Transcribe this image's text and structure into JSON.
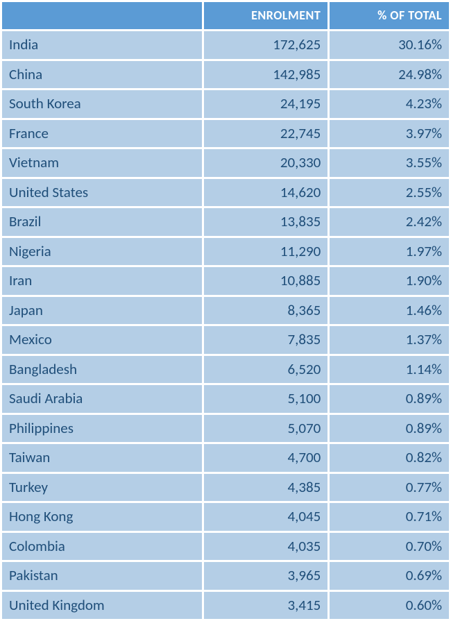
{
  "table": {
    "type": "table",
    "header_bg": "#5b9bd5",
    "header_text_color": "#ffffff",
    "row_bg": "#b4cee6",
    "row_text_color": "#1f4e79",
    "columns": [
      {
        "key": "country",
        "label": "",
        "align": "left"
      },
      {
        "key": "enrolment",
        "label": "ENROLMENT",
        "align": "right"
      },
      {
        "key": "pct",
        "label": "% OF TOTAL",
        "align": "right"
      }
    ],
    "rows": [
      {
        "country": "India",
        "enrolment": "172,625",
        "pct": "30.16%"
      },
      {
        "country": "China",
        "enrolment": "142,985",
        "pct": "24.98%"
      },
      {
        "country": "South Korea",
        "enrolment": "24,195",
        "pct": "4.23%"
      },
      {
        "country": "France",
        "enrolment": "22,745",
        "pct": "3.97%"
      },
      {
        "country": "Vietnam",
        "enrolment": "20,330",
        "pct": "3.55%"
      },
      {
        "country": "United States",
        "enrolment": "14,620",
        "pct": "2.55%"
      },
      {
        "country": "Brazil",
        "enrolment": "13,835",
        "pct": "2.42%"
      },
      {
        "country": "Nigeria",
        "enrolment": "11,290",
        "pct": "1.97%"
      },
      {
        "country": "Iran",
        "enrolment": "10,885",
        "pct": "1.90%"
      },
      {
        "country": "Japan",
        "enrolment": "8,365",
        "pct": "1.46%"
      },
      {
        "country": "Mexico",
        "enrolment": "7,835",
        "pct": "1.37%"
      },
      {
        "country": "Bangladesh",
        "enrolment": "6,520",
        "pct": "1.14%"
      },
      {
        "country": "Saudi Arabia",
        "enrolment": "5,100",
        "pct": "0.89%"
      },
      {
        "country": "Philippines",
        "enrolment": "5,070",
        "pct": "0.89%"
      },
      {
        "country": "Taiwan",
        "enrolment": "4,700",
        "pct": "0.82%"
      },
      {
        "country": "Turkey",
        "enrolment": "4,385",
        "pct": "0.77%"
      },
      {
        "country": "Hong Kong",
        "enrolment": "4,045",
        "pct": "0.71%"
      },
      {
        "country": "Colombia",
        "enrolment": "4,035",
        "pct": "0.70%"
      },
      {
        "country": "Pakistan",
        "enrolment": "3,965",
        "pct": "0.69%"
      },
      {
        "country": "United Kingdom",
        "enrolment": "3,415",
        "pct": "0.60%"
      }
    ]
  }
}
